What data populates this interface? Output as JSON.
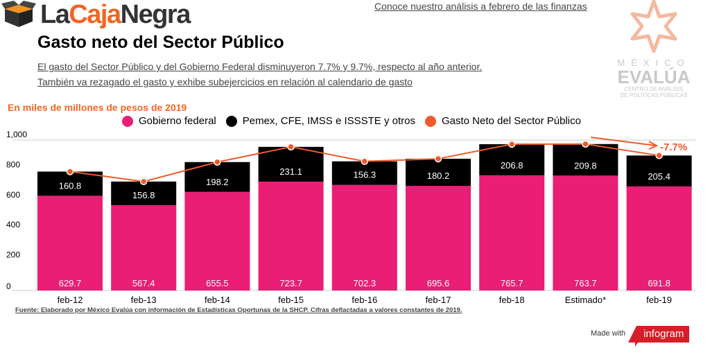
{
  "logo": {
    "part1": "La",
    "part2": "Caja",
    "part3": "Negra"
  },
  "header": {
    "title": "Gasto neto del Sector Público",
    "subtitle_1": "El gasto del Sector Público y del Gobierno Federal disminuyeron 7.7% y 9.7%, respecto al año anterior. ",
    "subtitle_2": "También va rezagado el gasto y exhibe subejercicios en relación al calendario de gasto",
    "top_link": "Conoce nuestro análisis a febrero de las finanzas "
  },
  "evalua_logo": {
    "line1": "MÉXICO",
    "line2": "EVALÚA",
    "line3": "CENTRO DE ANÁLISIS",
    "line4": "DE POLÍTICAS PÚBLICAS"
  },
  "footer": {
    "source": "Fuente: Elaborado por México Evalúa con información de Estadísticas Oportunas de la SHCP. Cifras deflactadas a valores constantes de 2019. ",
    "made_with": "Made with",
    "infogram": "infogram"
  },
  "chart_data": {
    "type": "bar",
    "stacked": true,
    "unit_label": "En miles de millones de pesos de 2019",
    "categories": [
      "feb-12",
      "feb-13",
      "feb-14",
      "feb-15",
      "feb-16",
      "feb-17",
      "feb-18",
      "Estimado*",
      "feb-19"
    ],
    "series": [
      {
        "name": "Gobierno federal",
        "type": "bar",
        "color": "#e91e74",
        "values": [
          629.7,
          567.4,
          655.5,
          723.7,
          702.3,
          695.6,
          765.7,
          763.7,
          691.8
        ]
      },
      {
        "name": "Pemex, CFE, IMSS e ISSSTE y otros",
        "type": "bar",
        "color": "#000000",
        "values": [
          160.8,
          156.8,
          198.2,
          231.1,
          156.3,
          180.2,
          206.8,
          209.8,
          205.4
        ]
      },
      {
        "name": "Gasto Neto del Sector Público",
        "type": "line",
        "color": "#ef5a28",
        "values": [
          790.5,
          724.2,
          853.7,
          954.8,
          858.6,
          875.8,
          972.5,
          973.5,
          897.2
        ]
      }
    ],
    "yticks": [
      "0",
      "200",
      "400",
      "600",
      "800",
      "1,000"
    ],
    "ylim": [
      0,
      1000
    ],
    "grid": false,
    "legend": "top",
    "annotation": {
      "text": "-7.7%",
      "color": "#ef5a28"
    }
  }
}
